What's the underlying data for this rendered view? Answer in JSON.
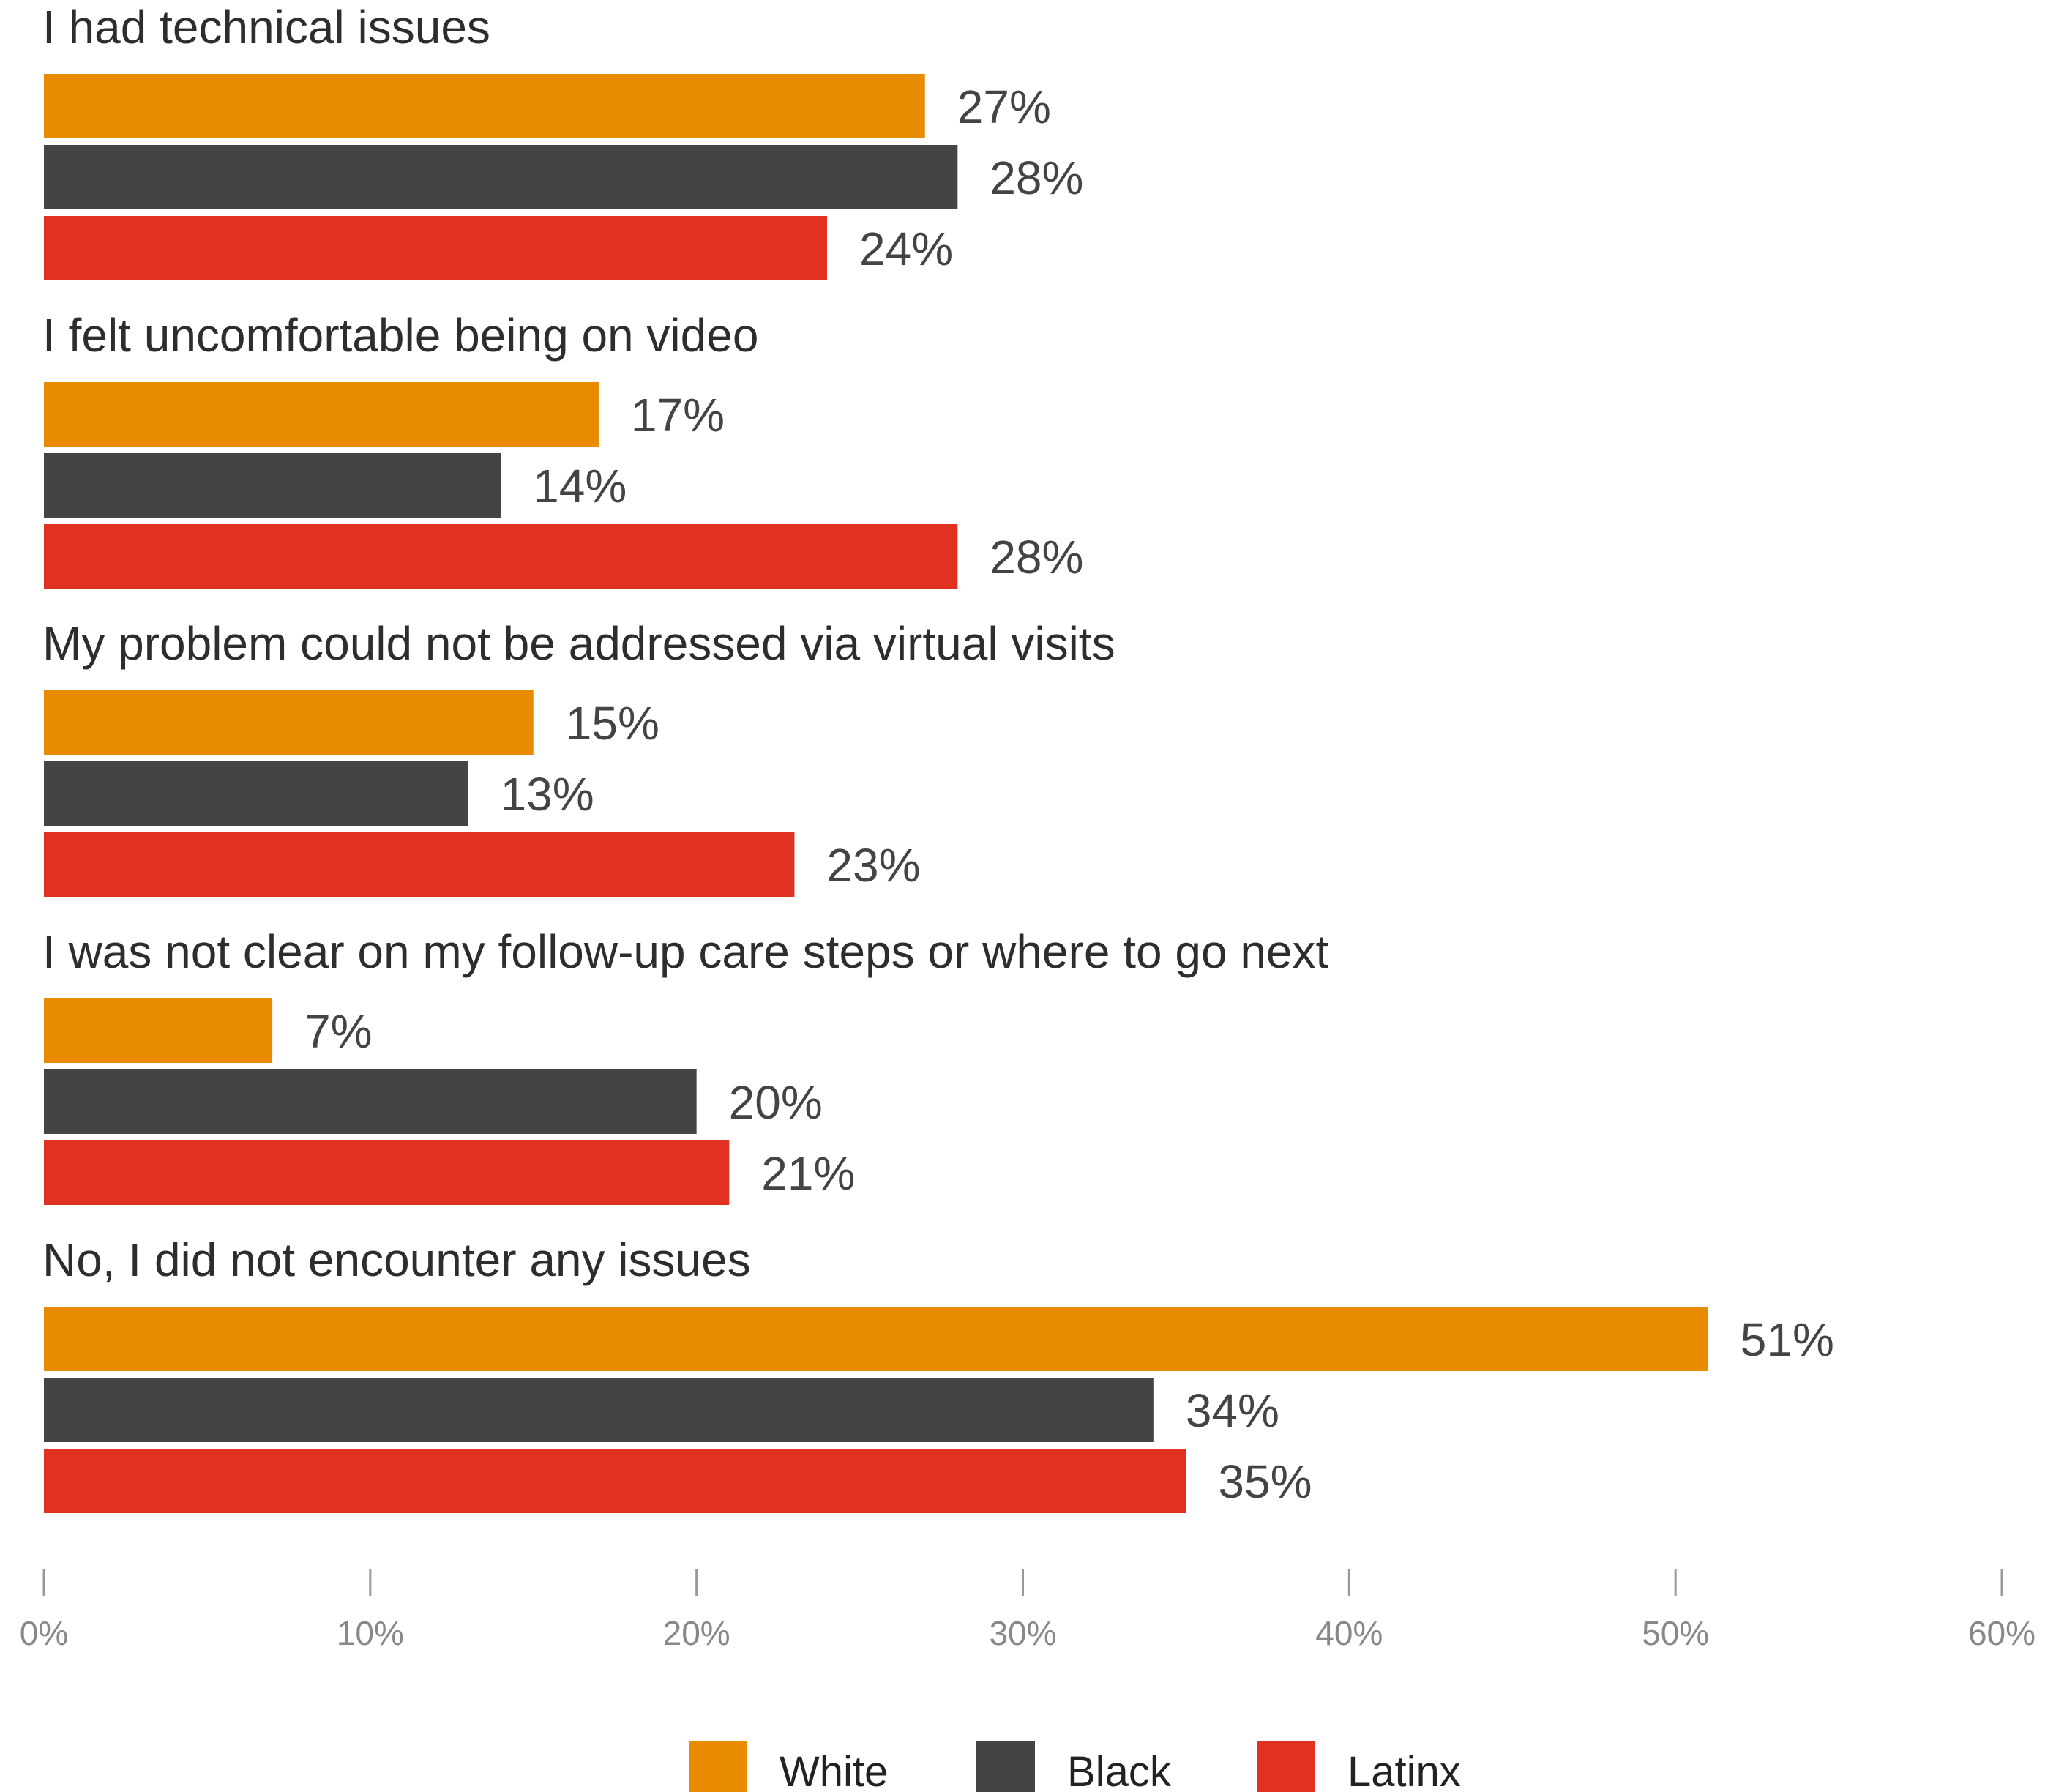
{
  "chart_data": {
    "type": "bar",
    "orientation": "horizontal",
    "categories": [
      "I had technical issues",
      "I felt uncomfortable being on video",
      "My problem could not be addressed via virtual visits",
      "I was not clear on my follow-up care steps or where to go next",
      "No, I did not encounter any issues"
    ],
    "series": [
      {
        "name": "White",
        "color": "#E98B00",
        "values": [
          27,
          17,
          15,
          7,
          51
        ],
        "labels": [
          "27%",
          "17%",
          "15%",
          "7%",
          "51%"
        ]
      },
      {
        "name": "Black",
        "color": "#444444",
        "values": [
          28,
          14,
          13,
          20,
          34
        ],
        "labels": [
          "28%",
          "14%",
          "13%",
          "20%",
          "34%"
        ]
      },
      {
        "name": "Latinx",
        "color": "#E03121",
        "values": [
          24,
          28,
          23,
          21,
          35
        ],
        "labels": [
          "24%",
          "28%",
          "23%",
          "21%",
          "35%"
        ]
      }
    ],
    "xlim": [
      0,
      60
    ],
    "xticks": [
      0,
      10,
      20,
      30,
      40,
      50,
      60
    ],
    "xtick_labels": [
      "0%",
      "10%",
      "20%",
      "30%",
      "40%",
      "50%",
      "60%"
    ],
    "grid": false,
    "legend_position": "bottom-center"
  }
}
